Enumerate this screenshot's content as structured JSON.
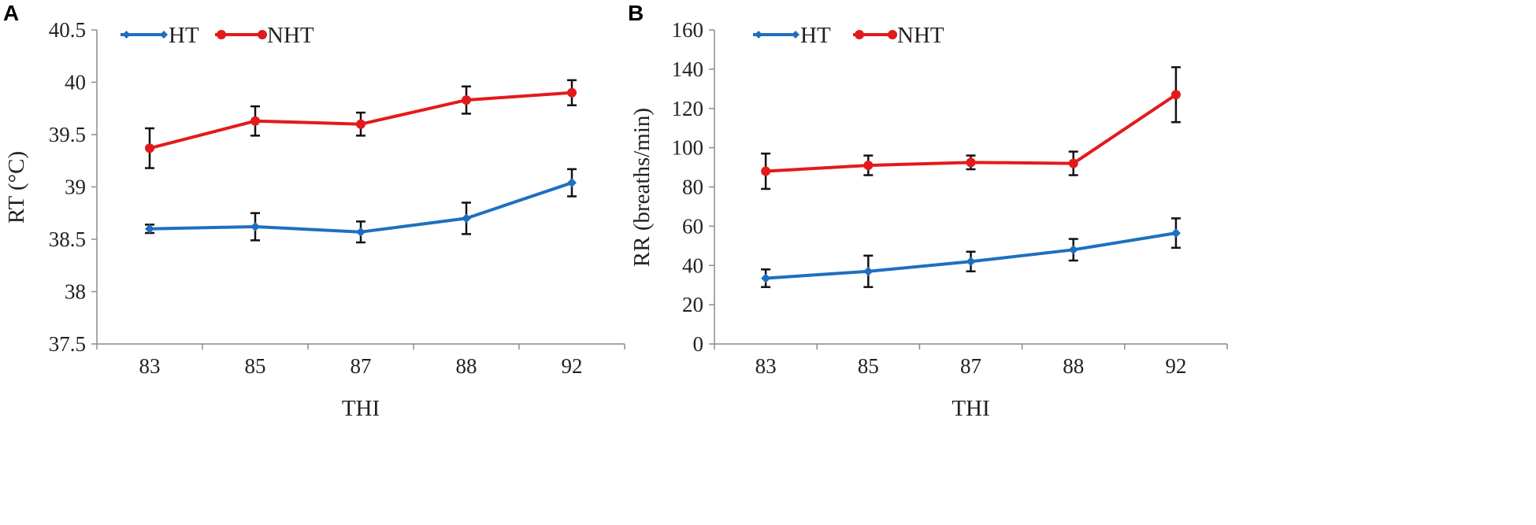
{
  "chart_data": [
    {
      "type": "line",
      "panel_label": "A",
      "categories": [
        "83",
        "85",
        "87",
        "88",
        "92"
      ],
      "xlabel": "THI",
      "ylabel": "RT (°C)",
      "ylim": [
        37.5,
        40.5
      ],
      "ytick_labels": [
        "37.5",
        "38",
        "38.5",
        "39",
        "39.5",
        "40",
        "40.5"
      ],
      "legend_position": "top-left",
      "series": [
        {
          "name": "HT",
          "color": "#1f6fbf",
          "marker": "diamond",
          "values": [
            38.6,
            38.62,
            38.57,
            38.7,
            39.04
          ],
          "errors": [
            0.04,
            0.13,
            0.1,
            0.15,
            0.13
          ]
        },
        {
          "name": "NHT",
          "color": "#e31a1c",
          "marker": "circle",
          "values": [
            39.37,
            39.63,
            39.6,
            39.83,
            39.9
          ],
          "errors": [
            0.19,
            0.14,
            0.11,
            0.13,
            0.12
          ]
        }
      ]
    },
    {
      "type": "line",
      "panel_label": "B",
      "categories": [
        "83",
        "85",
        "87",
        "88",
        "92"
      ],
      "xlabel": "THI",
      "ylabel": "RR (breaths/min)",
      "ylim": [
        0,
        160
      ],
      "ytick_labels": [
        "0",
        "20",
        "40",
        "60",
        "80",
        "100",
        "120",
        "140",
        "160"
      ],
      "legend_position": "top-left",
      "series": [
        {
          "name": "HT",
          "color": "#1f6fbf",
          "marker": "diamond",
          "values": [
            33.5,
            37,
            42,
            48,
            56.5
          ],
          "errors": [
            4.5,
            8,
            5,
            5.5,
            7.5
          ]
        },
        {
          "name": "NHT",
          "color": "#e31a1c",
          "marker": "circle",
          "values": [
            88,
            91,
            92.5,
            92,
            127
          ],
          "errors": [
            9,
            5,
            3.5,
            6,
            14
          ]
        }
      ]
    }
  ]
}
